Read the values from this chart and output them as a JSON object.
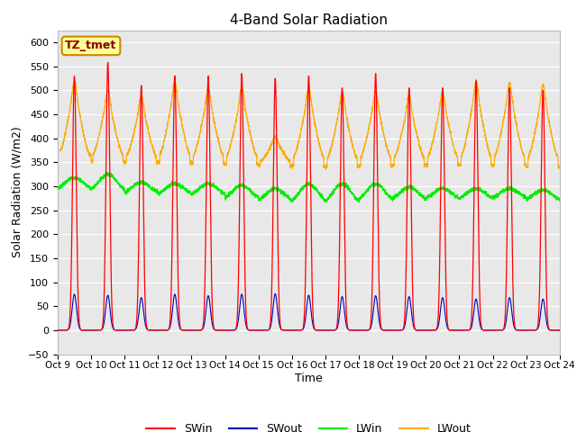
{
  "title": "4-Band Solar Radiation",
  "xlabel": "Time",
  "ylabel": "Solar Radiation (W/m2)",
  "ylim": [
    -50,
    625
  ],
  "yticks": [
    -50,
    0,
    50,
    100,
    150,
    200,
    250,
    300,
    350,
    400,
    450,
    500,
    550,
    600
  ],
  "colors": {
    "SWin": "#ff0000",
    "SWout": "#0000bb",
    "LWin": "#00ee00",
    "LWout": "#ffaa00"
  },
  "bg_color": "#e8e8e8",
  "fig_bg": "#ffffff",
  "tz_label": "TZ_tmet",
  "tz_bg": "#ffff99",
  "tz_border": "#cc8800",
  "n_days": 15,
  "start_day": 9,
  "SWin_peaks": [
    530,
    558,
    510,
    530,
    530,
    535,
    525,
    530,
    505,
    535,
    505,
    505,
    520,
    505,
    500
  ],
  "SWout_peaks": [
    75,
    73,
    68,
    75,
    72,
    75,
    76,
    73,
    70,
    72,
    70,
    68,
    65,
    68,
    65
  ],
  "LWin_base": [
    290,
    285,
    282,
    280,
    278,
    270,
    265,
    262,
    260,
    265,
    268,
    270,
    270,
    272,
    268
  ],
  "LWin_peaks": [
    318,
    325,
    308,
    305,
    305,
    302,
    295,
    305,
    305,
    305,
    298,
    295,
    295,
    295,
    292
  ],
  "LWout_day_base": [
    350,
    350,
    348,
    350,
    348,
    348,
    345,
    345,
    342,
    345,
    345,
    345,
    345,
    345,
    342
  ],
  "LWout_night_base": [
    365,
    352,
    350,
    350,
    348,
    346,
    343,
    342,
    340,
    343,
    344,
    344,
    344,
    344,
    340
  ],
  "LWout_peaks": [
    480,
    465,
    455,
    478,
    468,
    468,
    390,
    468,
    460,
    462,
    455,
    462,
    478,
    475,
    472
  ],
  "LWout_init": 375
}
